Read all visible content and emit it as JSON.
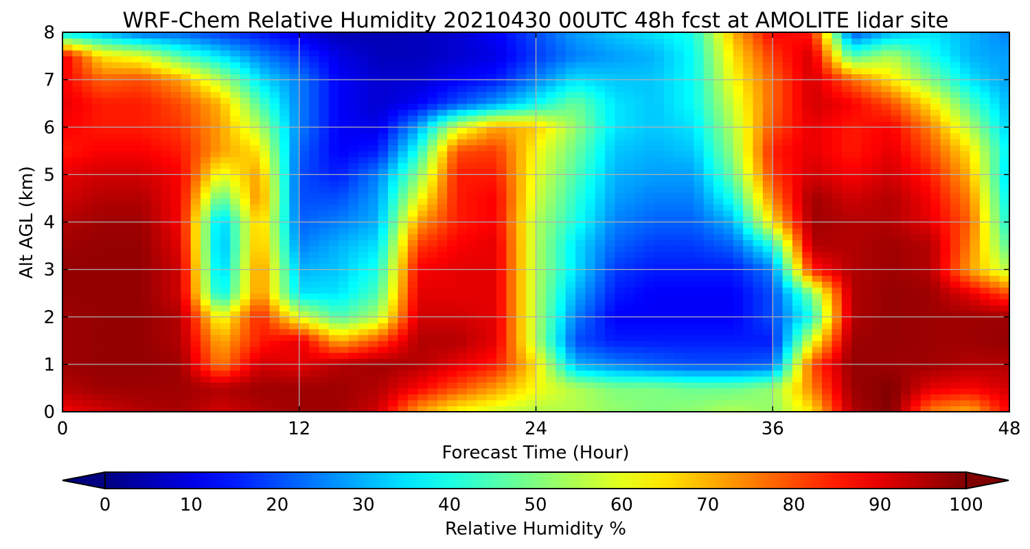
{
  "chart_data": {
    "type": "heatmap",
    "title": "WRF-Chem Relative Humidity 20210430 00UTC 48h fcst at AMOLITE lidar site",
    "xlabel": "Forecast Time (Hour)",
    "ylabel": "Alt AGL (km)",
    "xlim": [
      0,
      48
    ],
    "ylim": [
      0,
      8
    ],
    "x_ticks": [
      "0",
      "12",
      "24",
      "36",
      "48"
    ],
    "y_ticks": [
      "0",
      "1",
      "2",
      "3",
      "4",
      "5",
      "6",
      "7",
      "8"
    ],
    "grid": true,
    "colormap": "jet",
    "colorbar": {
      "label": "Relative Humidity %",
      "range": [
        0,
        100
      ],
      "ticks": [
        "0",
        "10",
        "20",
        "30",
        "40",
        "50",
        "60",
        "70",
        "80",
        "90",
        "100"
      ],
      "orientation": "horizontal",
      "position": "bottom",
      "extend": "both"
    },
    "x_hours": [
      0,
      2,
      4,
      6,
      8,
      10,
      12,
      14,
      16,
      18,
      20,
      22,
      24,
      26,
      28,
      30,
      32,
      34,
      36,
      38,
      40,
      42,
      44,
      46,
      48
    ],
    "y_km": [
      0,
      0.5,
      1,
      1.5,
      2,
      2.5,
      3,
      3.5,
      4,
      4.5,
      5,
      5.5,
      6,
      6.5,
      7,
      7.5,
      8
    ],
    "rh_percent": [
      [
        88,
        92,
        95,
        96,
        92,
        95,
        97,
        97,
        92,
        72,
        62,
        58,
        55,
        55,
        52,
        50,
        52,
        55,
        52,
        65,
        95,
        100,
        75,
        70,
        88
      ],
      [
        95,
        97,
        97,
        97,
        95,
        97,
        97,
        97,
        95,
        88,
        80,
        72,
        62,
        55,
        50,
        50,
        48,
        48,
        52,
        75,
        97,
        100,
        90,
        88,
        92
      ],
      [
        97,
        98,
        98,
        97,
        75,
        92,
        90,
        95,
        97,
        95,
        90,
        85,
        65,
        30,
        25,
        22,
        20,
        20,
        22,
        80,
        98,
        97,
        97,
        95,
        95
      ],
      [
        97,
        98,
        98,
        95,
        70,
        85,
        90,
        70,
        80,
        95,
        95,
        90,
        55,
        20,
        15,
        15,
        15,
        15,
        15,
        60,
        97,
        98,
        97,
        97,
        98
      ],
      [
        97,
        98,
        98,
        95,
        60,
        85,
        60,
        45,
        55,
        92,
        92,
        90,
        55,
        25,
        12,
        12,
        12,
        12,
        20,
        40,
        95,
        98,
        97,
        97,
        97
      ],
      [
        98,
        98,
        98,
        92,
        35,
        75,
        35,
        35,
        45,
        90,
        90,
        90,
        55,
        30,
        15,
        12,
        12,
        12,
        20,
        50,
        95,
        98,
        97,
        90,
        80
      ],
      [
        98,
        98,
        98,
        92,
        30,
        75,
        30,
        32,
        40,
        88,
        90,
        90,
        55,
        35,
        18,
        15,
        15,
        15,
        25,
        85,
        95,
        97,
        95,
        72,
        55
      ],
      [
        97,
        98,
        98,
        90,
        28,
        72,
        25,
        30,
        35,
        82,
        88,
        90,
        55,
        35,
        22,
        18,
        18,
        22,
        40,
        95,
        95,
        97,
        95,
        75,
        45
      ],
      [
        95,
        97,
        97,
        88,
        30,
        70,
        22,
        25,
        30,
        72,
        85,
        88,
        55,
        40,
        25,
        22,
        22,
        30,
        65,
        97,
        95,
        95,
        90,
        78,
        38
      ],
      [
        92,
        95,
        95,
        88,
        45,
        75,
        20,
        20,
        28,
        60,
        85,
        88,
        58,
        42,
        28,
        25,
        25,
        40,
        75,
        97,
        92,
        95,
        88,
        75,
        35
      ],
      [
        90,
        92,
        92,
        88,
        60,
        72,
        20,
        15,
        25,
        50,
        85,
        85,
        60,
        45,
        30,
        28,
        28,
        48,
        82,
        92,
        88,
        92,
        85,
        70,
        32
      ],
      [
        85,
        88,
        88,
        85,
        72,
        65,
        22,
        12,
        15,
        40,
        80,
        82,
        62,
        48,
        32,
        30,
        32,
        52,
        85,
        90,
        85,
        90,
        80,
        65,
        35
      ],
      [
        88,
        85,
        85,
        82,
        72,
        55,
        25,
        12,
        10,
        28,
        58,
        72,
        68,
        52,
        35,
        32,
        35,
        55,
        80,
        90,
        85,
        88,
        75,
        55,
        32
      ],
      [
        90,
        85,
        85,
        80,
        70,
        45,
        25,
        12,
        8,
        12,
        20,
        28,
        38,
        48,
        35,
        32,
        38,
        58,
        78,
        92,
        88,
        80,
        65,
        45,
        30
      ],
      [
        88,
        78,
        80,
        72,
        55,
        35,
        25,
        12,
        8,
        8,
        12,
        15,
        25,
        35,
        32,
        32,
        38,
        62,
        78,
        92,
        78,
        65,
        50,
        35,
        28
      ],
      [
        90,
        65,
        60,
        45,
        35,
        25,
        18,
        10,
        6,
        6,
        8,
        10,
        18,
        25,
        28,
        30,
        38,
        65,
        82,
        92,
        45,
        55,
        40,
        30,
        28
      ],
      [
        35,
        30,
        22,
        22,
        18,
        15,
        10,
        5,
        5,
        6,
        8,
        12,
        20,
        28,
        32,
        35,
        40,
        70,
        88,
        85,
        20,
        30,
        35,
        30,
        25
      ]
    ]
  }
}
